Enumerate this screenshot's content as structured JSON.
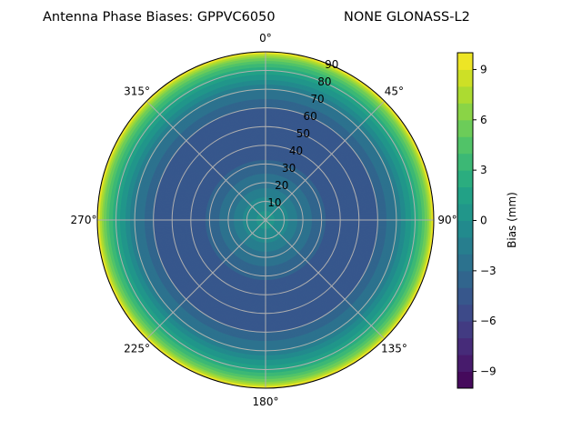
{
  "chart_data": {
    "type": "heatmap",
    "subtype": "polar-contour",
    "title_left": "Antenna Phase Biases: GPPVC6050",
    "title_right": "NONE GLONASS-L2",
    "angular_ticks": [
      "0°",
      "45°",
      "90°",
      "135°",
      "180°",
      "225°",
      "270°",
      "315°"
    ],
    "angular_values": [
      0,
      45,
      90,
      135,
      180,
      225,
      270,
      315
    ],
    "radial_ticks": [
      "10",
      "20",
      "30",
      "40",
      "50",
      "60",
      "70",
      "80",
      "90"
    ],
    "radial_values": [
      10,
      20,
      30,
      40,
      50,
      60,
      70,
      80,
      90
    ],
    "rlim": [
      0,
      90
    ],
    "direction": "clockwise",
    "zero_location": "top",
    "grid": true,
    "colormap": "viridis",
    "colorbar": {
      "label": "Bias (mm)",
      "range": [
        -10,
        10
      ],
      "levels_step": 1,
      "ticks": [
        "−9",
        "−6",
        "−3",
        "0",
        "3",
        "6",
        "9"
      ],
      "tick_values": [
        -9,
        -6,
        -3,
        0,
        3,
        6,
        9
      ],
      "position": "right"
    },
    "radial_profile": {
      "zenith_deg": [
        0,
        5,
        10,
        15,
        20,
        25,
        30,
        35,
        40,
        45,
        50,
        55,
        60,
        65,
        70,
        74,
        78,
        81,
        84,
        86,
        88,
        89,
        90
      ],
      "bias_mm": [
        0.5,
        0,
        -0.5,
        -1.5,
        -2.5,
        -3,
        -3.5,
        -4.5,
        -5,
        -5,
        -5,
        -4.8,
        -4,
        -3,
        -2,
        -0.5,
        1,
        2.5,
        4,
        5.5,
        7,
        8.5,
        9.5
      ]
    }
  }
}
